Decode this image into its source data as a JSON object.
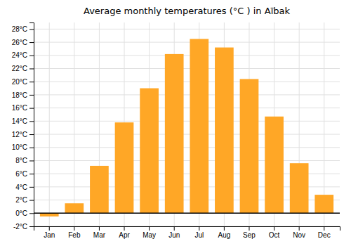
{
  "chart_data": {
    "type": "bar",
    "title": "Average monthly temperatures (°C ) in Aībak",
    "categories": [
      "Jan",
      "Feb",
      "Mar",
      "Apr",
      "May",
      "Jun",
      "Jul",
      "Aug",
      "Sep",
      "Oct",
      "Nov",
      "Dec"
    ],
    "values": [
      -0.5,
      1.5,
      7.2,
      13.8,
      19.0,
      24.2,
      26.5,
      25.2,
      20.4,
      14.7,
      7.6,
      2.8
    ],
    "color": "#FFA726",
    "ylim": [
      -2,
      29
    ],
    "yticks": [
      {
        "value": -2,
        "label": "-2°C"
      },
      {
        "value": 0,
        "label": "0°C"
      },
      {
        "value": 2,
        "label": "2°C"
      },
      {
        "value": 4,
        "label": "4°C"
      },
      {
        "value": 6,
        "label": "6°C"
      },
      {
        "value": 8,
        "label": "8°C"
      },
      {
        "value": 10,
        "label": "10°C"
      },
      {
        "value": 12,
        "label": "12°C"
      },
      {
        "value": 14,
        "label": "14°C"
      },
      {
        "value": 16,
        "label": "16°C"
      },
      {
        "value": 18,
        "label": "18°C"
      },
      {
        "value": 20,
        "label": "20°C"
      },
      {
        "value": 22,
        "label": "22°C"
      },
      {
        "value": 24,
        "label": "24°C"
      },
      {
        "value": 26,
        "label": "26°C"
      },
      {
        "value": 28,
        "label": "28°C"
      }
    ],
    "grid": true
  }
}
